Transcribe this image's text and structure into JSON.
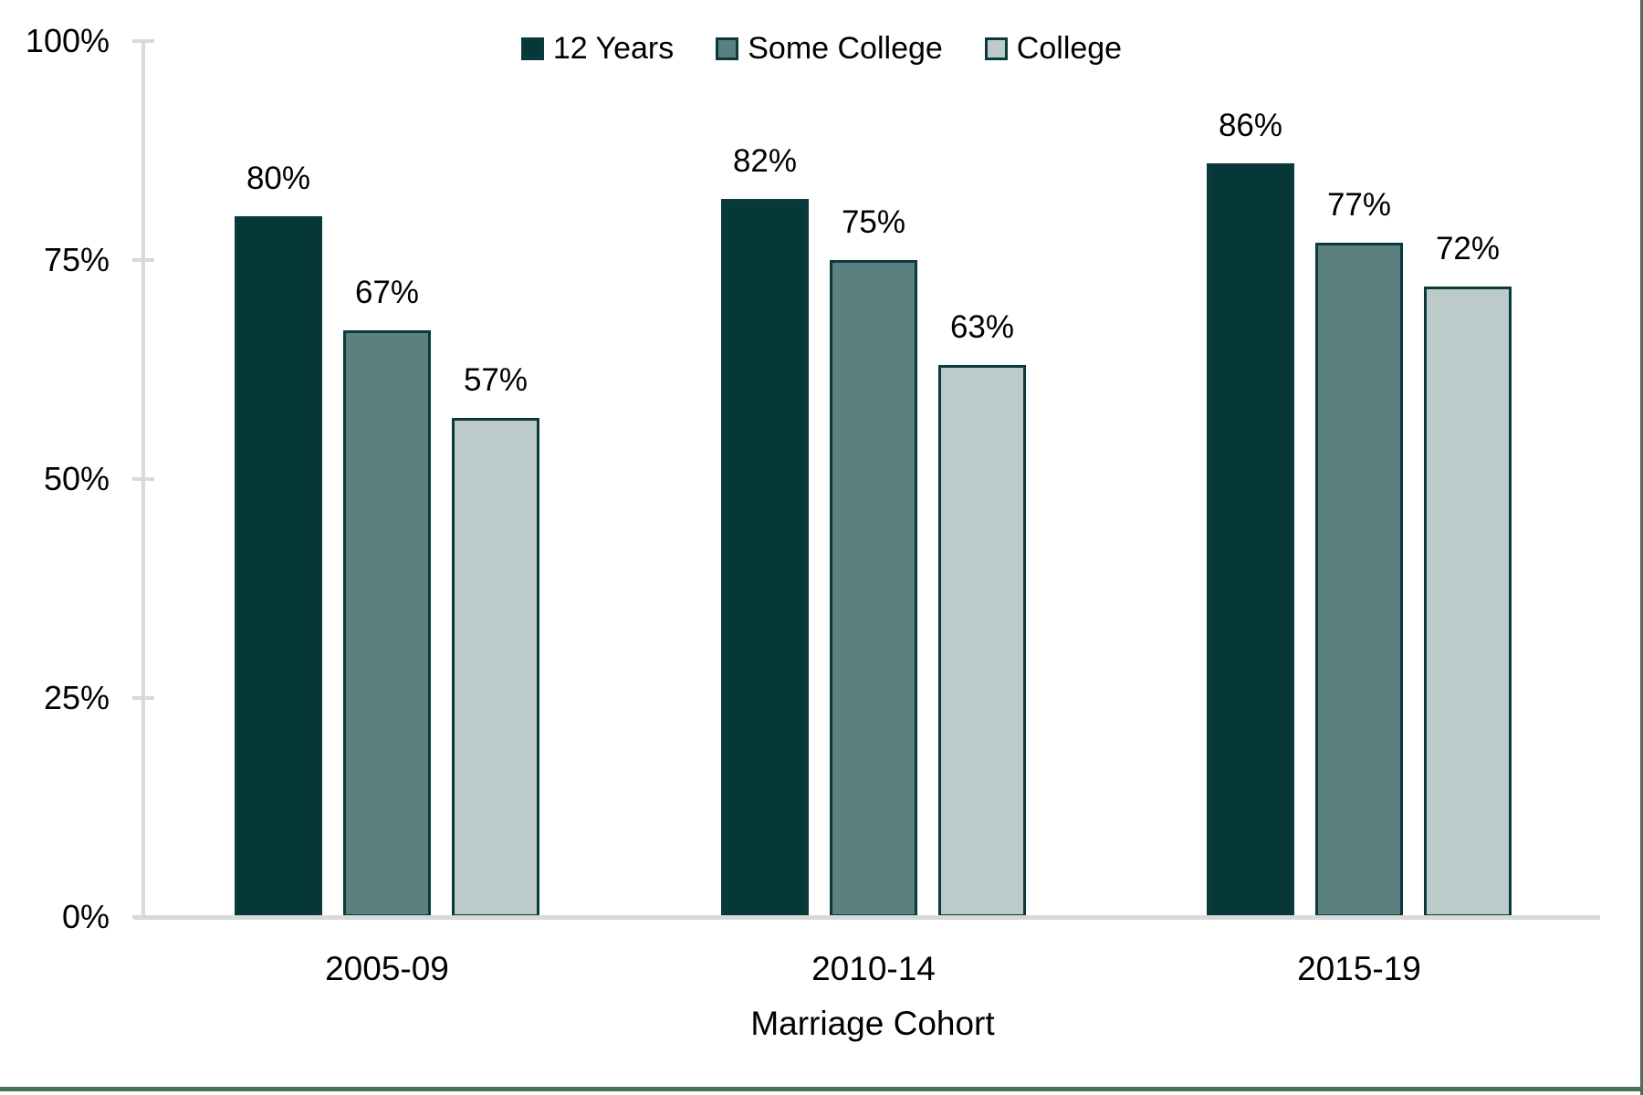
{
  "figure": {
    "background": "#ffffff",
    "frame_color": "#4a6f55",
    "axis_color": "#d9d9d9",
    "text_color": "#000000",
    "bar_border_color": "#0b3a3c"
  },
  "chart_data": {
    "type": "bar",
    "title": "",
    "xlabel": "Marriage Cohort",
    "ylabel": "",
    "categories": [
      "2005-09",
      "2010-14",
      "2015-19"
    ],
    "series": [
      {
        "name": "12 Years",
        "color": "#06383a",
        "values": [
          80,
          82,
          86
        ],
        "labels": [
          "80%",
          "82%",
          "86%"
        ]
      },
      {
        "name": "Some College",
        "color": "#5a8180",
        "values": [
          67,
          75,
          77
        ],
        "labels": [
          "67%",
          "75%",
          "77%"
        ]
      },
      {
        "name": "College",
        "color": "#bccac9",
        "values": [
          57,
          63,
          72
        ],
        "labels": [
          "57%",
          "63%",
          "72%"
        ]
      }
    ],
    "ylim": [
      0,
      100
    ],
    "y_ticks": [
      {
        "value": 0,
        "label": "0%"
      },
      {
        "value": 25,
        "label": "25%"
      },
      {
        "value": 50,
        "label": "50%"
      },
      {
        "value": 75,
        "label": "75%"
      },
      {
        "value": 100,
        "label": "100%"
      }
    ],
    "grid": "off",
    "legend_position": "top"
  }
}
